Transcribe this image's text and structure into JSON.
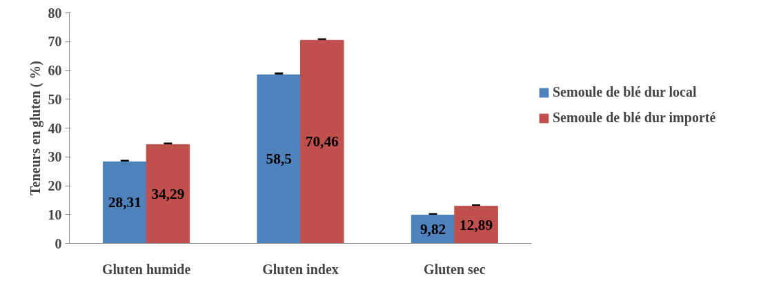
{
  "chart_data": {
    "type": "bar",
    "ylabel": "Teneurs en gluten ( %)",
    "categories": [
      "Gluten humide",
      "Gluten index",
      "Gluten sec"
    ],
    "series": [
      {
        "name": "Semoule de blé dur local",
        "color": "#4f81bd",
        "values": [
          28.31,
          58.5,
          9.82
        ],
        "errors": [
          0.3,
          0.4,
          0.3
        ],
        "value_labels": [
          "28,31",
          "58,5",
          "9,82"
        ]
      },
      {
        "name": "Semoule de blé dur importé",
        "color": "#c0504d",
        "values": [
          34.29,
          70.46,
          12.89
        ],
        "errors": [
          0.3,
          0.3,
          0.3
        ],
        "value_labels": [
          "34,29",
          "70,46",
          "12,89"
        ]
      }
    ],
    "ylim": [
      0,
      80
    ],
    "yticks": [
      0,
      10,
      20,
      30,
      40,
      50,
      60,
      70,
      80
    ],
    "grid": false,
    "legend": "right"
  }
}
